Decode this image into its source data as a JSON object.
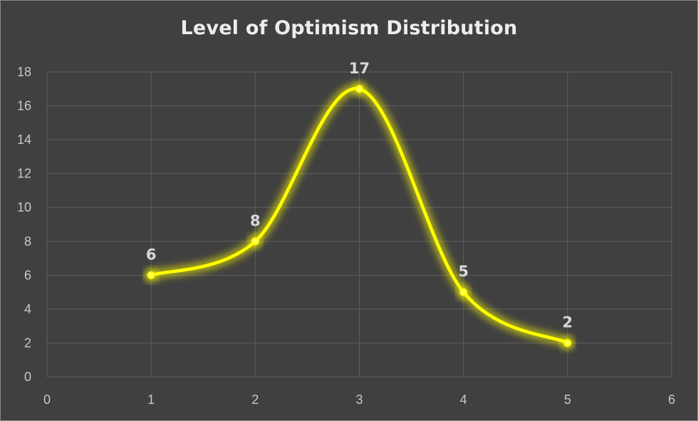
{
  "chart_data": {
    "type": "scatter",
    "title": "Level of Optimism Distribution",
    "x": [
      1,
      2,
      3,
      4,
      5
    ],
    "y": [
      6,
      8,
      17,
      5,
      2
    ],
    "data_labels": [
      "6",
      "8",
      "17",
      "5",
      "2"
    ],
    "xlim": [
      0,
      6
    ],
    "ylim": [
      0,
      18
    ],
    "x_ticks": [
      "0",
      "1",
      "2",
      "3",
      "4",
      "5",
      "6"
    ],
    "y_ticks": [
      "0",
      "2",
      "4",
      "6",
      "8",
      "10",
      "12",
      "14",
      "16",
      "18"
    ],
    "smooth_line": true,
    "grid": true,
    "line_color": "#ffff00",
    "background_color": "#404040",
    "grid_color": "#5e5e5e"
  }
}
